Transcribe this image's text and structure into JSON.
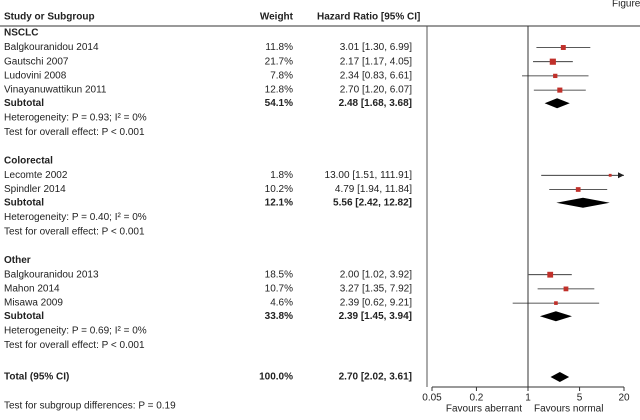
{
  "chart_data": {
    "type": "forest",
    "corner_text": "Figure",
    "columns": [
      "Study or Subgroup",
      "Weight",
      "Hazard Ratio [95% CI]"
    ],
    "xscale": "log",
    "xlim": [
      0.05,
      20
    ],
    "xticks": [
      0.05,
      0.2,
      1,
      5,
      20
    ],
    "xlabel_left": "Favours aberrant",
    "xlabel_right": "Favours normal",
    "marker_color": "#c0302a",
    "groups": [
      {
        "name": "NSCLC",
        "studies": [
          {
            "name": "Balgkouranidou 2014",
            "weight": 11.8,
            "weight_label": "11.8%",
            "hr": 3.01,
            "lo": 1.3,
            "hi": 6.99,
            "label": "3.01 [1.30, 6.99]"
          },
          {
            "name": "Gautschi 2007",
            "weight": 21.7,
            "weight_label": "21.7%",
            "hr": 2.17,
            "lo": 1.17,
            "hi": 4.05,
            "label": "2.17 [1.17, 4.05]"
          },
          {
            "name": "Ludovini 2008",
            "weight": 7.8,
            "weight_label": "7.8%",
            "hr": 2.34,
            "lo": 0.83,
            "hi": 6.61,
            "label": "2.34 [0.83, 6.61]"
          },
          {
            "name": "Vinayanuwattikun 2011",
            "weight": 12.8,
            "weight_label": "12.8%",
            "hr": 2.7,
            "lo": 1.2,
            "hi": 6.07,
            "label": "2.70 [1.20, 6.07]"
          }
        ],
        "subtotal": {
          "name": "Subtotal",
          "weight": 54.1,
          "weight_label": "54.1%",
          "hr": 2.48,
          "lo": 1.68,
          "hi": 3.68,
          "label": "2.48 [1.68, 3.68]"
        },
        "heterogeneity": "Heterogeneity: P = 0.93; I² = 0%",
        "overall": "Test for overall effect: P < 0.001"
      },
      {
        "name": "Colorectal",
        "studies": [
          {
            "name": "Lecomte 2002",
            "weight": 1.8,
            "weight_label": "1.8%",
            "hr": 13.0,
            "lo": 1.51,
            "hi": 111.91,
            "label": "13.00 [1.51, 111.91]"
          },
          {
            "name": "Spindler 2014",
            "weight": 10.2,
            "weight_label": "10.2%",
            "hr": 4.79,
            "lo": 1.94,
            "hi": 11.84,
            "label": "4.79 [1.94, 11.84]"
          }
        ],
        "subtotal": {
          "name": "Subtotal",
          "weight": 12.1,
          "weight_label": "12.1%",
          "hr": 5.56,
          "lo": 2.42,
          "hi": 12.82,
          "label": "5.56 [2.42, 12.82]"
        },
        "heterogeneity": "Heterogeneity: P = 0.40; I² = 0%",
        "overall": "Test for overall effect: P < 0.001"
      },
      {
        "name": "Other",
        "studies": [
          {
            "name": "Balgkouranidou 2013",
            "weight": 18.5,
            "weight_label": "18.5%",
            "hr": 2.0,
            "lo": 1.02,
            "hi": 3.92,
            "label": "2.00 [1.02, 3.92]"
          },
          {
            "name": "Mahon 2014",
            "weight": 10.7,
            "weight_label": "10.7%",
            "hr": 3.27,
            "lo": 1.35,
            "hi": 7.92,
            "label": "3.27 [1.35, 7.92]"
          },
          {
            "name": "Misawa 2009",
            "weight": 4.6,
            "weight_label": "4.6%",
            "hr": 2.39,
            "lo": 0.62,
            "hi": 9.21,
            "label": "2.39 [0.62, 9.21]"
          }
        ],
        "subtotal": {
          "name": "Subtotal",
          "weight": 33.8,
          "weight_label": "33.8%",
          "hr": 2.39,
          "lo": 1.45,
          "hi": 3.94,
          "label": "2.39 [1.45, 3.94]"
        },
        "heterogeneity": "Heterogeneity: P = 0.69; I² = 0%",
        "overall": "Test for overall effect: P < 0.001"
      }
    ],
    "total": {
      "name": "Total (95% CI)",
      "weight": 100.0,
      "weight_label": "100.0%",
      "hr": 2.7,
      "lo": 2.02,
      "hi": 3.61,
      "label": "2.70 [2.02, 3.61]"
    },
    "subgroup_test": "Test for subgroup differences: P = 0.19"
  }
}
